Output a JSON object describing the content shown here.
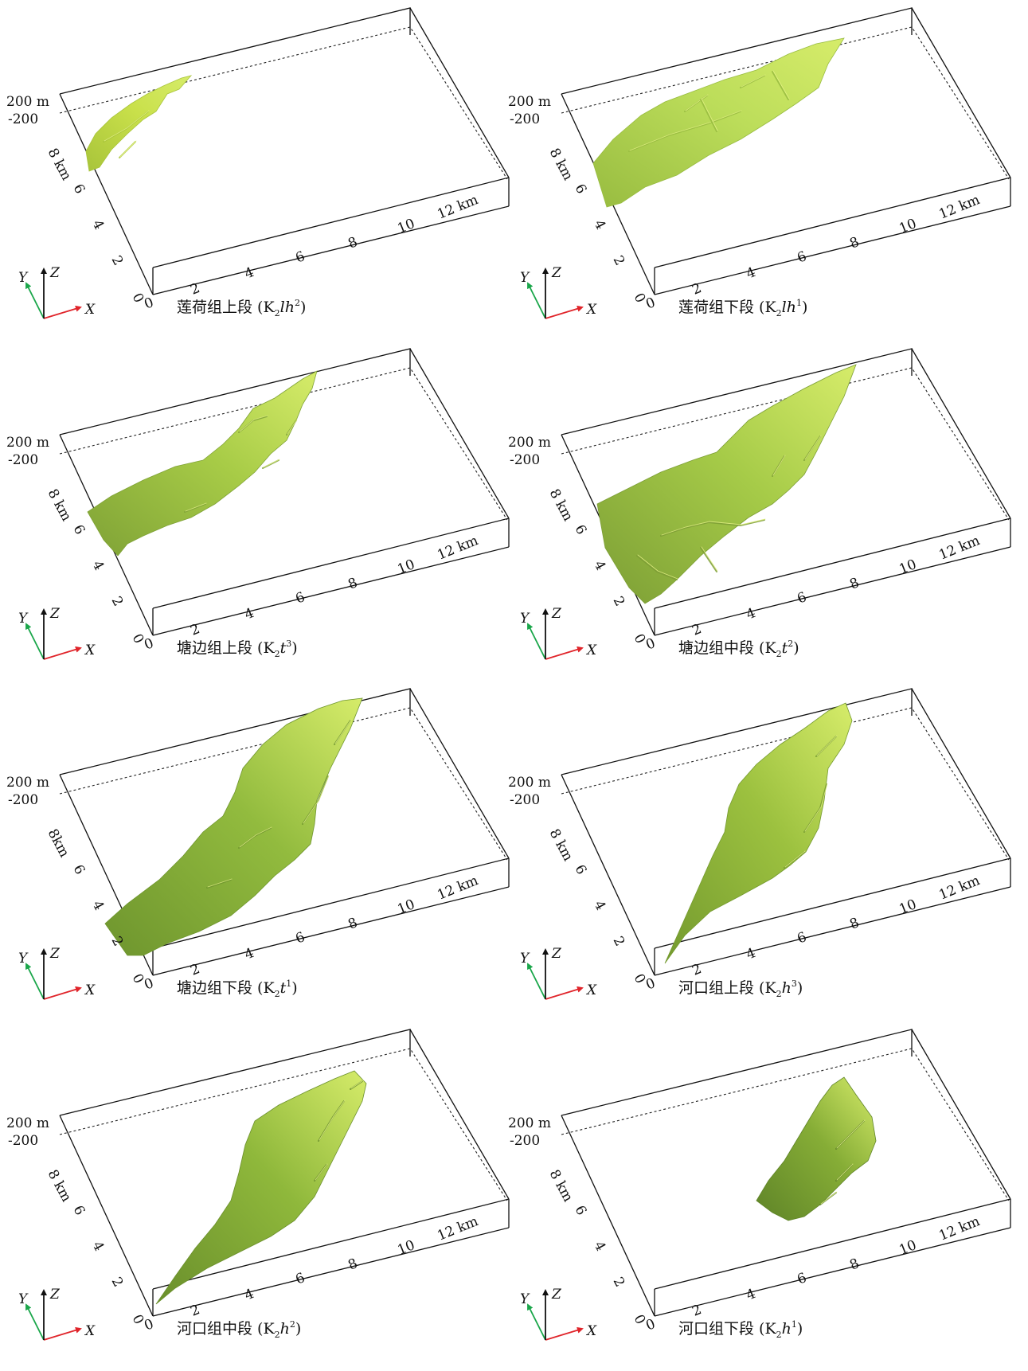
{
  "figure": {
    "panels": [
      {
        "id": "k2lh2",
        "title": "莲荷组上段",
        "code": {
          "K": "K",
          "sub": "2",
          "italic": "lh",
          "sup": "2"
        },
        "body_color": "#c9e04a",
        "body_shade": "#a8c43a"
      },
      {
        "id": "k2lh1",
        "title": "莲荷组下段",
        "code": {
          "K": "K",
          "sub": "2",
          "italic": "lh",
          "sup": "1"
        },
        "body_color": "#bcdd5a",
        "body_shade": "#98bc40"
      },
      {
        "id": "k2t3",
        "title": "塘边组上段",
        "code": {
          "K": "K",
          "sub": "2",
          "italic": "t",
          "sup": "3"
        },
        "body_color": "#a8cc47",
        "body_shade": "#7fa236"
      },
      {
        "id": "k2t2",
        "title": "塘边组中段",
        "code": {
          "K": "K",
          "sub": "2",
          "italic": "t",
          "sup": "2"
        },
        "body_color": "#a6cb48",
        "body_shade": "#7c9e35"
      },
      {
        "id": "k2t1",
        "title": "塘边组下段",
        "code": {
          "K": "K",
          "sub": "2",
          "italic": "t",
          "sup": "1"
        },
        "body_color": "#92bb3e",
        "body_shade": "#6e952e"
      },
      {
        "id": "k2h3",
        "title": "河口组上段",
        "code": {
          "K": "K",
          "sub": "2",
          "italic": "h",
          "sup": "3"
        },
        "body_color": "#9cc13f",
        "body_shade": "#749a2f"
      },
      {
        "id": "k2h2",
        "title": "河口组中段",
        "code": {
          "K": "K",
          "sub": "2",
          "italic": "h",
          "sup": "2"
        },
        "body_color": "#8fb83b",
        "body_shade": "#6a8f2c"
      },
      {
        "id": "k2h1",
        "title": "河口组下段",
        "code": {
          "K": "K",
          "sub": "2",
          "italic": "h",
          "sup": "1"
        },
        "body_color": "#86ad36",
        "body_shade": "#5f8428"
      }
    ],
    "z_labels": [
      "200 m",
      "-200"
    ],
    "y_axis_label_km": "8 km",
    "y_axis_label_km_alt": "8km",
    "y_ticks": [
      "6",
      "4",
      "2"
    ],
    "x_ticks": [
      "0",
      "2",
      "4",
      "6",
      "8",
      "10",
      "12 km"
    ],
    "y_origin": "0",
    "triad": {
      "x": "X",
      "y": "Y",
      "z": "Z",
      "x_color": "#e0242a",
      "y_color": "#1aa64a",
      "z_color": "#111111"
    }
  }
}
